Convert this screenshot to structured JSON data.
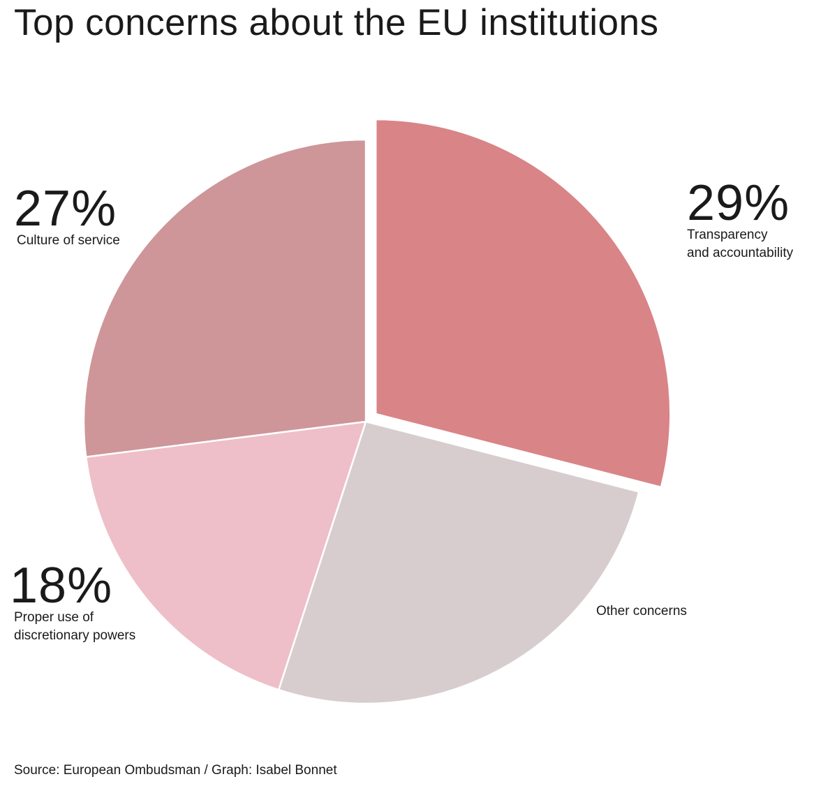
{
  "chart_data": {
    "type": "pie",
    "title": "Top concerns about the EU institutions",
    "slices": [
      {
        "name": "Transparency and accountability",
        "value": 29,
        "value_label": "29%",
        "label_line1": "Transparency",
        "label_line2": "and accountability",
        "color": "#d98487",
        "exploded": true
      },
      {
        "name": "Other concerns",
        "value": 26,
        "value_label": "",
        "label_line1": "Other concerns",
        "label_line2": "",
        "color": "#d7cdcf",
        "exploded": false
      },
      {
        "name": "Proper use of discretionary powers",
        "value": 18,
        "value_label": "18%",
        "label_line1": "Proper use of",
        "label_line2": "discretionary powers",
        "color": "#eebfc9",
        "exploded": false
      },
      {
        "name": "Culture of service",
        "value": 27,
        "value_label": "27%",
        "label_line1": "Culture of service",
        "label_line2": "",
        "color": "#ce9699",
        "exploded": false
      }
    ],
    "start_angle": "12 o'clock",
    "direction": "clockwise",
    "legend": "none"
  },
  "source": "Source: European Ombudsman / Graph: Isabel Bonnet"
}
